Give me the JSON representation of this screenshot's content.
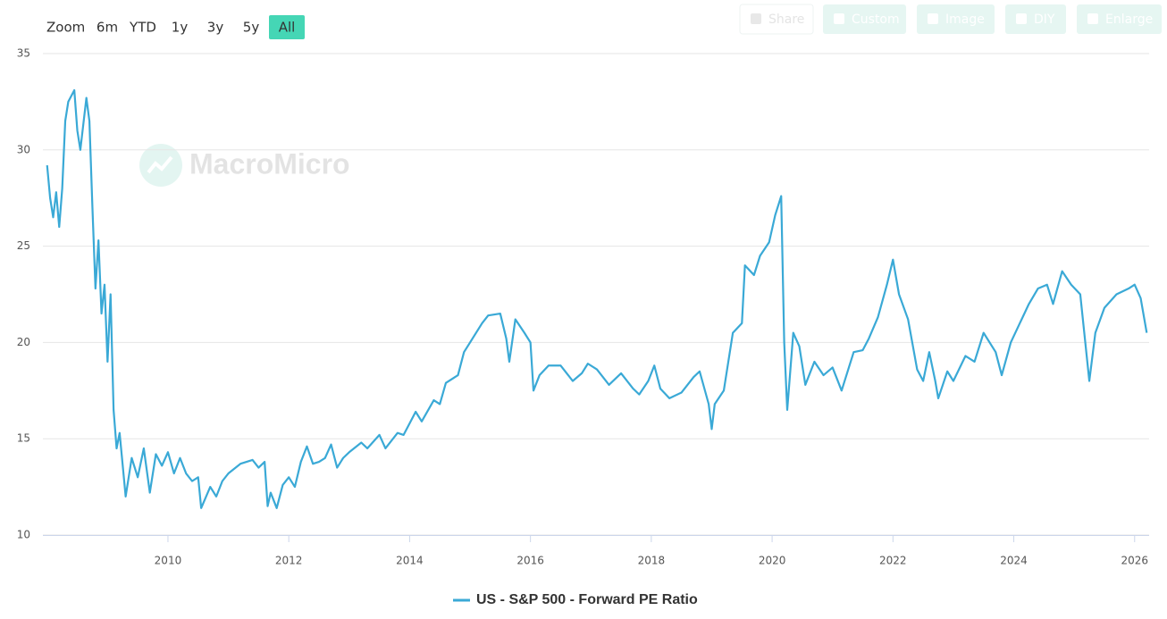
{
  "toolbar": {
    "zoom_label": "Zoom",
    "ranges": [
      {
        "label": "6m",
        "selected": false
      },
      {
        "label": "YTD",
        "selected": false
      },
      {
        "label": "1y",
        "selected": false
      },
      {
        "label": "3y",
        "selected": false
      },
      {
        "label": "5y",
        "selected": false
      },
      {
        "label": "All",
        "selected": true
      }
    ],
    "actions": [
      "Share",
      "Custom",
      "Image",
      "DIY",
      "Enlarge"
    ]
  },
  "watermark": "MacroMicro",
  "chart_data": {
    "type": "line",
    "grid": true,
    "xlim": [
      2007.93,
      2026.24
    ],
    "xticks": [
      2010,
      2012,
      2014,
      2016,
      2018,
      2020,
      2022,
      2024,
      2026
    ],
    "ylim": [
      10,
      35
    ],
    "yticks": [
      10,
      15,
      20,
      25,
      30,
      35
    ],
    "x": [
      2008.0,
      2008.05,
      2008.1,
      2008.15,
      2008.2,
      2008.25,
      2008.3,
      2008.35,
      2008.45,
      2008.5,
      2008.55,
      2008.65,
      2008.7,
      2008.75,
      2008.8,
      2008.85,
      2008.9,
      2008.95,
      2009.0,
      2009.05,
      2009.1,
      2009.15,
      2009.2,
      2009.3,
      2009.4,
      2009.5,
      2009.6,
      2009.7,
      2009.8,
      2009.9,
      2010.0,
      2010.1,
      2010.2,
      2010.3,
      2010.4,
      2010.5,
      2010.55,
      2010.7,
      2010.8,
      2010.9,
      2011.0,
      2011.2,
      2011.4,
      2011.5,
      2011.6,
      2011.65,
      2011.7,
      2011.8,
      2011.9,
      2012.0,
      2012.1,
      2012.2,
      2012.3,
      2012.4,
      2012.5,
      2012.6,
      2012.7,
      2012.8,
      2012.9,
      2013.0,
      2013.2,
      2013.3,
      2013.5,
      2013.6,
      2013.8,
      2013.9,
      2014.0,
      2014.1,
      2014.2,
      2014.4,
      2014.5,
      2014.6,
      2014.75,
      2014.8,
      2014.9,
      2015.0,
      2015.2,
      2015.3,
      2015.5,
      2015.6,
      2015.65,
      2015.75,
      2015.9,
      2016.0,
      2016.05,
      2016.15,
      2016.3,
      2016.5,
      2016.7,
      2016.85,
      2016.95,
      2017.1,
      2017.3,
      2017.5,
      2017.7,
      2017.8,
      2017.95,
      2018.05,
      2018.15,
      2018.3,
      2018.5,
      2018.7,
      2018.8,
      2018.95,
      2019.0,
      2019.05,
      2019.2,
      2019.35,
      2019.5,
      2019.55,
      2019.7,
      2019.8,
      2019.95,
      2020.05,
      2020.15,
      2020.2,
      2020.25,
      2020.35,
      2020.45,
      2020.55,
      2020.7,
      2020.85,
      2021.0,
      2021.15,
      2021.35,
      2021.5,
      2021.6,
      2021.75,
      2021.9,
      2022.0,
      2022.1,
      2022.25,
      2022.4,
      2022.5,
      2022.6,
      2022.7,
      2022.75,
      2022.9,
      2023.0,
      2023.2,
      2023.35,
      2023.5,
      2023.7,
      2023.8,
      2023.95,
      2024.1,
      2024.25,
      2024.4,
      2024.55,
      2024.65,
      2024.8,
      2024.95,
      2025.1,
      2025.25,
      2025.35,
      2025.5,
      2025.7,
      2025.9,
      2026.0,
      2026.1,
      2026.2
    ],
    "series": [
      {
        "name": "US - S&P 500 - Forward PE Ratio",
        "color": "#3aa9d6",
        "values": [
          29.2,
          27.5,
          26.5,
          27.8,
          26,
          28,
          31.5,
          32.5,
          33.1,
          31,
          30,
          32.7,
          31.5,
          27,
          22.8,
          25.3,
          21.5,
          23,
          19,
          22.5,
          16.5,
          14.5,
          15.3,
          12,
          14,
          13,
          14.5,
          12.2,
          14.2,
          13.6,
          14.3,
          13.2,
          14.0,
          13.2,
          12.8,
          13.0,
          11.4,
          12.5,
          12.0,
          12.8,
          13.2,
          13.7,
          13.9,
          13.5,
          13.8,
          11.5,
          12.2,
          11.4,
          12.6,
          13.0,
          12.5,
          13.8,
          14.6,
          13.7,
          13.8,
          14.0,
          14.7,
          13.5,
          14.0,
          14.3,
          14.8,
          14.5,
          15.2,
          14.5,
          15.3,
          15.2,
          15.8,
          16.4,
          15.9,
          17.0,
          16.8,
          17.9,
          18.2,
          18.3,
          19.5,
          20,
          21.0,
          21.4,
          21.5,
          20.2,
          19.0,
          21.2,
          20.5,
          20.0,
          17.5,
          18.3,
          18.8,
          18.8,
          18.0,
          18.4,
          18.9,
          18.6,
          17.8,
          18.4,
          17.6,
          17.3,
          18.0,
          18.8,
          17.6,
          17.1,
          17.4,
          18.2,
          18.5,
          16.8,
          15.5,
          16.8,
          17.5,
          20.5,
          21.0,
          24,
          23.5,
          24.5,
          25.2,
          26.6,
          27.6,
          20,
          16.5,
          20.5,
          19.8,
          17.8,
          19.0,
          18.3,
          18.7,
          17.5,
          19.5,
          19.6,
          20.2,
          21.3,
          23.0,
          24.3,
          22.5,
          21.2,
          18.6,
          18.0,
          19.5,
          18.0,
          17.1,
          18.5,
          18.0,
          19.3,
          19.0,
          20.5,
          19.5,
          18.3,
          20.0,
          21.0,
          22.0,
          22.8,
          23.0,
          22.0,
          23.7,
          23.0,
          22.5,
          18.0,
          20.5,
          21.8,
          22.5,
          22.8,
          23.0,
          22.3,
          20.5
        ]
      }
    ]
  }
}
